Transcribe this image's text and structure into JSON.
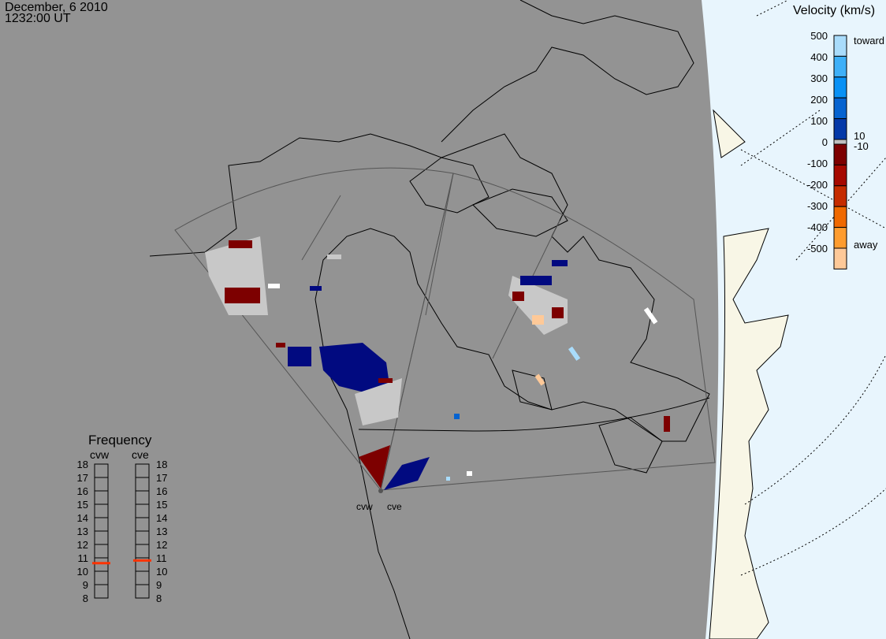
{
  "header": {
    "date": "December, 6 2010",
    "time": "1232:00 UT"
  },
  "colorbar": {
    "title": "Velocity (km/s)",
    "ticks": [
      "500",
      "400",
      "300",
      "200",
      "100",
      "0",
      "-100",
      "-200",
      "-300",
      "-400",
      "-500"
    ],
    "toward_label": "toward",
    "away_label": "away",
    "ground_scatter_labels": [
      "10",
      "-10"
    ],
    "colors": [
      "#a9dcfb",
      "#3eb0f8",
      "#0891f5",
      "#0563d0",
      "#0439a8",
      "#010a80",
      "#bfbfbf",
      "#7d0000",
      "#a60900",
      "#c52c00",
      "#ef6900",
      "#fe9c2e",
      "#fec998"
    ]
  },
  "frequency": {
    "title": "Frequency",
    "unit_range": [
      8,
      18
    ],
    "ticks": [
      "18",
      "17",
      "16",
      "15",
      "14",
      "13",
      "12",
      "11",
      "10",
      "9",
      "8"
    ],
    "radars": [
      {
        "name": "cvw",
        "value_mhz": 10.6
      },
      {
        "name": "cve",
        "value_mhz": 10.8
      }
    ],
    "marker_color": "#ff3300"
  },
  "map": {
    "radar_labels": [
      "cvw",
      "cve"
    ],
    "background": "#939393",
    "ocean_night": "#e8f5fd",
    "land_day": "#f8f6e6"
  }
}
